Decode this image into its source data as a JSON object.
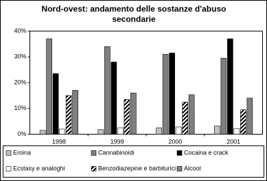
{
  "chart_data": {
    "type": "bar",
    "title": "Nord-ovest: andamento delle sostanze d'abuso secondarie",
    "categories": [
      "1998",
      "1999",
      "2000",
      "2001"
    ],
    "series": [
      {
        "name": "Eroina",
        "color": "#c0c0c0",
        "values": [
          1.5,
          1.8,
          2.5,
          3.2
        ]
      },
      {
        "name": "Cannabinoidi",
        "color": "#808080",
        "values": [
          37,
          34,
          31,
          29.5
        ]
      },
      {
        "name": "Cocaina e crack",
        "color": "#000000",
        "values": [
          23.5,
          28,
          31.5,
          37
        ]
      },
      {
        "name": "Ecstasy e analoghi",
        "color": "#ffffff",
        "values": [
          2,
          2.5,
          2.8,
          2.2
        ]
      },
      {
        "name": "Benzodiazepine e barbiturici",
        "color": "#000000",
        "pattern": "diagonal",
        "values": [
          15,
          13.5,
          12.5,
          9.5
        ]
      },
      {
        "name": "Alcool",
        "color": "#000000",
        "pattern": "dots",
        "values": [
          17,
          16,
          15.3,
          14
        ]
      }
    ],
    "ylim": [
      0,
      40
    ],
    "yticks": [
      {
        "value": 0,
        "label": "0%"
      },
      {
        "value": 10,
        "label": "10%"
      },
      {
        "value": 20,
        "label": "20%"
      },
      {
        "value": 30,
        "label": "30%"
      },
      {
        "value": 40,
        "label": "40%"
      }
    ],
    "grid": false
  }
}
